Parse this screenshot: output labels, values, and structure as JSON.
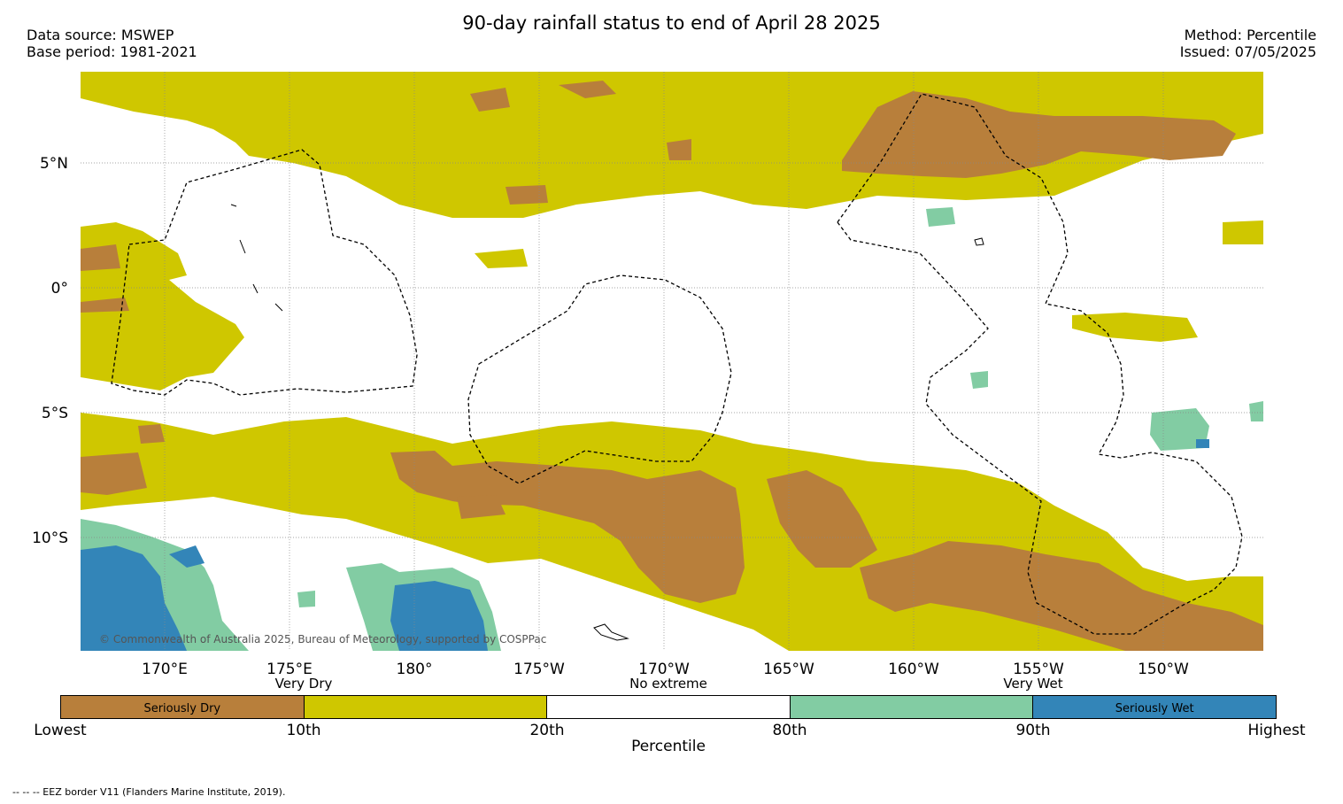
{
  "header": {
    "title": "90-day rainfall status to end of April 28 2025",
    "data_source": "Data source: MSWEP",
    "base_period": "Base period: 1981-2021",
    "method": "Method: Percentile",
    "issued": "Issued: 07/05/2025"
  },
  "map": {
    "lat_labels": [
      "5°N",
      "0°",
      "5°S",
      "10°S"
    ],
    "lon_labels": [
      "170°E",
      "175°E",
      "180°",
      "175°W",
      "170°W",
      "165°W",
      "160°W",
      "155°W",
      "150°W"
    ],
    "copyright": "© Commonwealth of Australia 2025, Bureau of Meteorology, supported by COSPPac",
    "colors": {
      "seriously_dry": "#b87f3b",
      "very_dry": "#cfc700",
      "no_extreme": "#ffffff",
      "very_wet": "#82cca3",
      "seriously_wet": "#3385b8",
      "grid": "#888888",
      "eez": "#000000"
    }
  },
  "legend": {
    "categories": [
      {
        "label": "Seriously Dry",
        "color": "#b87f3b"
      },
      {
        "label": "",
        "color": "#cfc700"
      },
      {
        "label": "",
        "color": "#ffffff"
      },
      {
        "label": "",
        "color": "#82cca3"
      },
      {
        "label": "Seriously Wet",
        "color": "#3385b8"
      }
    ],
    "top_labels": {
      "very_dry": "Very Dry",
      "no_extreme": "No extreme",
      "very_wet": "Very Wet"
    },
    "ticks": [
      "Lowest",
      "10th",
      "20th",
      "80th",
      "90th",
      "Highest"
    ],
    "axis_title": "Percentile"
  },
  "footnote": "-- -- -- EEZ border V11 (Flanders Marine Institute, 2019)."
}
